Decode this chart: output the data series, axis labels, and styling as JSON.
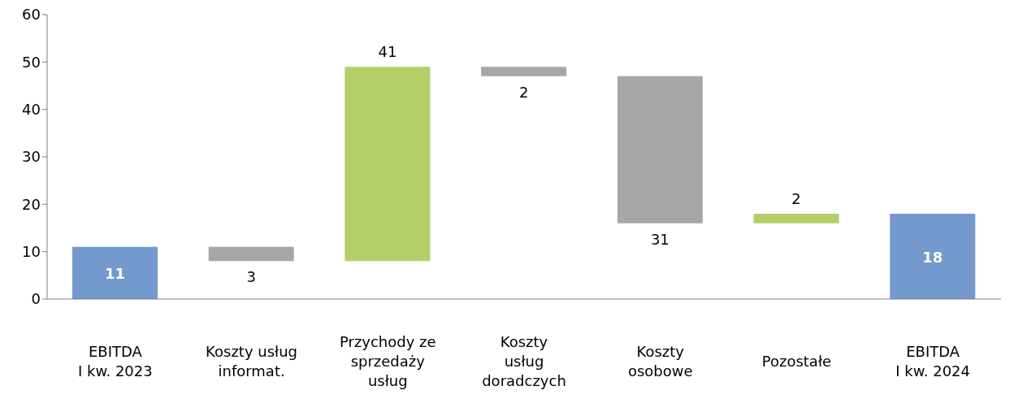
{
  "chart_data": {
    "type": "bar",
    "categories": [
      "EBITDA\nI kw. 2023",
      "Koszty usług\ninformat.",
      "Przychody ze\nsprzedaży\nusług",
      "Koszty\nusług\ndoradczych",
      "Koszty\nosobowe",
      "Pozostałe",
      "EBITDA\nI kw. 2024"
    ],
    "values": [
      11,
      -3,
      41,
      -2,
      -31,
      2,
      18
    ],
    "base": [
      0,
      11,
      8,
      49,
      47,
      16,
      0
    ],
    "colors": [
      "#7399cf",
      "#a6a6a6",
      "#b3cf66",
      "#a6a6a6",
      "#a6a6a6",
      "#b3cf66",
      "#7399cf"
    ],
    "value_labels": [
      "11",
      "3",
      "41",
      "2",
      "31",
      "2",
      "18"
    ],
    "ylim": [
      0,
      60
    ],
    "yticks": [
      0,
      10,
      20,
      30,
      40,
      50,
      60
    ],
    "grid": false,
    "legend": false
  }
}
